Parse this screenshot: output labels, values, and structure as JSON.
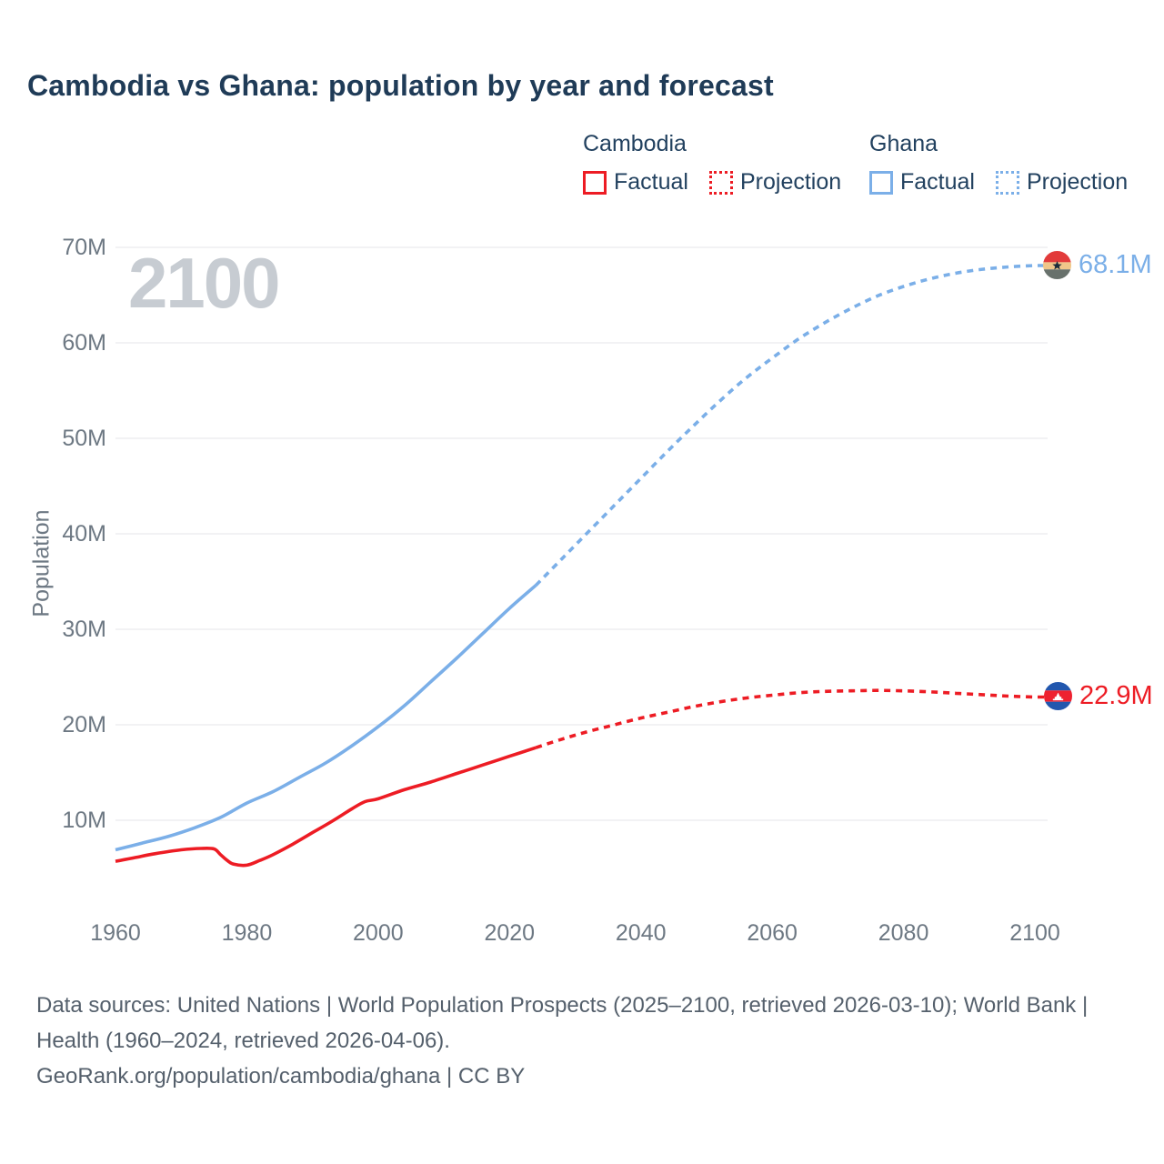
{
  "header": {
    "title": "Cambodia vs Ghana: population by year and forecast"
  },
  "legend": {
    "groups": [
      {
        "name": "Cambodia",
        "items": [
          {
            "label": "Factual",
            "style": "solid"
          },
          {
            "label": "Projection",
            "style": "dotted"
          }
        ]
      },
      {
        "name": "Ghana",
        "items": [
          {
            "label": "Factual",
            "style": "solid"
          },
          {
            "label": "Projection",
            "style": "dotted"
          }
        ]
      }
    ]
  },
  "colors": {
    "cambodia-red": "#ed1c24",
    "ghana-blue": "#7bafe8",
    "title-navy": "#1f3b57",
    "legend-navy": "#22415f",
    "tick-gray": "#6d7883",
    "grid-gray": "#e9ebee",
    "watermark-gray": "#c7ccd2",
    "footer-gray": "#55606c"
  },
  "chart_data": {
    "type": "line",
    "title": "Cambodia vs Ghana: population by year and forecast",
    "y_axis_label": "Population",
    "watermark": "2100",
    "grid": "horizontal",
    "x_range": [
      1960,
      2100
    ],
    "y_range_millions": [
      0,
      70
    ],
    "x_ticks": [
      1960,
      1980,
      2000,
      2020,
      2040,
      2060,
      2080,
      2100
    ],
    "y_ticks": [
      {
        "label": "10M",
        "value": 10
      },
      {
        "label": "20M",
        "value": 20
      },
      {
        "label": "30M",
        "value": 30
      },
      {
        "label": "40M",
        "value": 40
      },
      {
        "label": "50M",
        "value": 50
      },
      {
        "label": "60M",
        "value": 60
      },
      {
        "label": "70M",
        "value": 70
      }
    ],
    "series": [
      {
        "id": "ghana-factual",
        "country": "Ghana",
        "kind": "Factual",
        "style": "solid",
        "color_var": "ghana-blue",
        "points": [
          [
            1960,
            6.9
          ],
          [
            1964,
            7.6
          ],
          [
            1968,
            8.3
          ],
          [
            1972,
            9.2
          ],
          [
            1976,
            10.3
          ],
          [
            1980,
            11.8
          ],
          [
            1984,
            13.0
          ],
          [
            1988,
            14.5
          ],
          [
            1992,
            16.0
          ],
          [
            1996,
            17.8
          ],
          [
            2000,
            19.8
          ],
          [
            2004,
            22.0
          ],
          [
            2008,
            24.5
          ],
          [
            2012,
            27.0
          ],
          [
            2016,
            29.6
          ],
          [
            2020,
            32.2
          ],
          [
            2024,
            34.6
          ]
        ]
      },
      {
        "id": "ghana-projection",
        "country": "Ghana",
        "kind": "Projection",
        "style": "dotted",
        "color_var": "ghana-blue",
        "end_label": "68.1M",
        "points": [
          [
            2024,
            34.6
          ],
          [
            2028,
            37.4
          ],
          [
            2032,
            40.2
          ],
          [
            2036,
            43.0
          ],
          [
            2040,
            45.8
          ],
          [
            2044,
            48.6
          ],
          [
            2048,
            51.3
          ],
          [
            2052,
            53.9
          ],
          [
            2056,
            56.3
          ],
          [
            2060,
            58.4
          ],
          [
            2064,
            60.4
          ],
          [
            2068,
            62.1
          ],
          [
            2072,
            63.6
          ],
          [
            2076,
            64.9
          ],
          [
            2080,
            65.9
          ],
          [
            2084,
            66.7
          ],
          [
            2088,
            67.3
          ],
          [
            2092,
            67.7
          ],
          [
            2096,
            67.95
          ],
          [
            2100,
            68.1
          ]
        ]
      },
      {
        "id": "cambodia-factual",
        "country": "Cambodia",
        "kind": "Factual",
        "style": "solid",
        "color_var": "cambodia-red",
        "points": [
          [
            1960,
            5.7
          ],
          [
            1963,
            6.1
          ],
          [
            1966,
            6.5
          ],
          [
            1970,
            6.9
          ],
          [
            1973,
            7.05
          ],
          [
            1975,
            7.0
          ],
          [
            1976,
            6.4
          ],
          [
            1977,
            5.8
          ],
          [
            1978,
            5.4
          ],
          [
            1980,
            5.3
          ],
          [
            1982,
            5.8
          ],
          [
            1984,
            6.4
          ],
          [
            1987,
            7.5
          ],
          [
            1990,
            8.7
          ],
          [
            1993,
            9.9
          ],
          [
            1996,
            11.2
          ],
          [
            1998,
            11.95
          ],
          [
            2000,
            12.25
          ],
          [
            2004,
            13.2
          ],
          [
            2008,
            14.0
          ],
          [
            2012,
            14.9
          ],
          [
            2016,
            15.8
          ],
          [
            2020,
            16.7
          ],
          [
            2024,
            17.6
          ]
        ]
      },
      {
        "id": "cambodia-projection",
        "country": "Cambodia",
        "kind": "Projection",
        "style": "dotted",
        "color_var": "cambodia-red",
        "end_label": "22.9M",
        "points": [
          [
            2024,
            17.6
          ],
          [
            2028,
            18.5
          ],
          [
            2032,
            19.3
          ],
          [
            2036,
            20.0
          ],
          [
            2040,
            20.7
          ],
          [
            2044,
            21.3
          ],
          [
            2048,
            21.9
          ],
          [
            2052,
            22.4
          ],
          [
            2056,
            22.8
          ],
          [
            2060,
            23.1
          ],
          [
            2064,
            23.35
          ],
          [
            2068,
            23.5
          ],
          [
            2072,
            23.55
          ],
          [
            2076,
            23.6
          ],
          [
            2080,
            23.55
          ],
          [
            2084,
            23.45
          ],
          [
            2088,
            23.3
          ],
          [
            2092,
            23.15
          ],
          [
            2096,
            23.0
          ],
          [
            2100,
            22.9
          ]
        ]
      }
    ]
  },
  "footer": {
    "line1": "Data sources: United Nations | World Population Prospects (2025–2100, retrieved 2026-03-10); World Bank | Health (1960–2024, retrieved 2026-04-06).",
    "line2": "GeoRank.org/population/cambodia/ghana | CC BY"
  }
}
